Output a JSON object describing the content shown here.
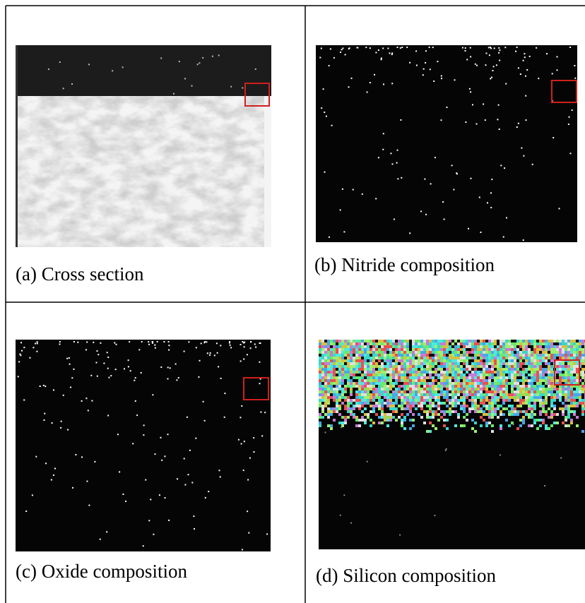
{
  "figure": {
    "panels": [
      {
        "caption": "(a) Cross section"
      },
      {
        "caption": "(b) Nitride composition"
      },
      {
        "caption": "(c) Oxide composition"
      },
      {
        "caption": "(d) Silicon composition"
      }
    ]
  }
}
